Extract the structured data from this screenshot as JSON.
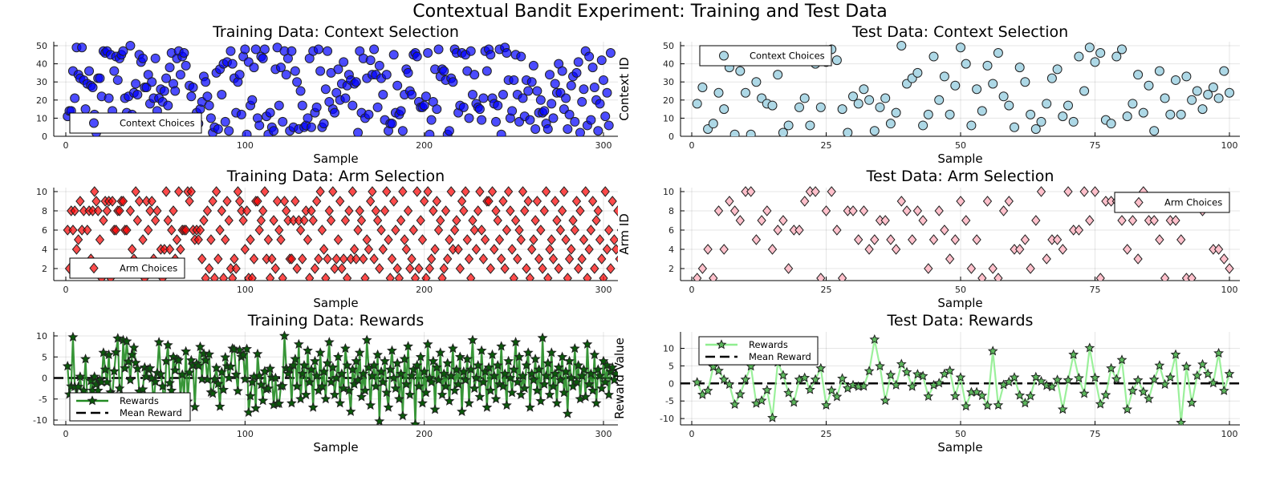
{
  "title": "Contextual Bandit Experiment: Training and Test Data",
  "chart_data": [
    {
      "id": "train_context",
      "type": "scatter",
      "title": "Training Data: Context Selection",
      "xlabel": "Sample",
      "ylabel": "Context ID",
      "legend": [
        "Context Choices"
      ],
      "legend_position": "bottom-left",
      "xlim": [
        0,
        300
      ],
      "ylim": [
        0,
        50
      ],
      "xticks": [
        0,
        100,
        200,
        300
      ],
      "yticks": [
        0,
        10,
        20,
        30,
        40,
        50
      ],
      "grid": true,
      "color": "#0000ff",
      "marker": "circle",
      "values": [
        11,
        14,
        14,
        36,
        21,
        49,
        34,
        32,
        49,
        31,
        15,
        29,
        36,
        28,
        27,
        12,
        2,
        32,
        32,
        22,
        47,
        46,
        47,
        21,
        45,
        14,
        36,
        44,
        31,
        43,
        45,
        47,
        21,
        13,
        22,
        50,
        12,
        24,
        29,
        23,
        45,
        41,
        43,
        27,
        27,
        34,
        18,
        30,
        21,
        43,
        14,
        21,
        26,
        19,
        25,
        32,
        17,
        38,
        46,
        29,
        25,
        43,
        47,
        34,
        44,
        46,
        39,
        6,
        28,
        22,
        27,
        9,
        13,
        7,
        15,
        19,
        33,
        30,
        22,
        17,
        10,
        2,
        5,
        35,
        4,
        37,
        23,
        40,
        8,
        41,
        3,
        47,
        40,
        32,
        13,
        30,
        34,
        12,
        44,
        48,
        1,
        41,
        17,
        20,
        38,
        48,
        10,
        6,
        44,
        43,
        48,
        11,
        1,
        13,
        5,
        3,
        37,
        49,
        17,
        38,
        8,
        47,
        34,
        43,
        3,
        47,
        5,
        36,
        30,
        4,
        25,
        17,
        5,
        6,
        10,
        43,
        5,
        47,
        13,
        16,
        48,
        36,
        5,
        7,
        26,
        47,
        19,
        35,
        15,
        13,
        24,
        37,
        20,
        29,
        41,
        21,
        28,
        34,
        31,
        17,
        29,
        30,
        2,
        47,
        13,
        43,
        10,
        32,
        12,
        42,
        34,
        48,
        34,
        16,
        39,
        32,
        23,
        9,
        34,
        3,
        7,
        7,
        45,
        13,
        28,
        12,
        14,
        3,
        23,
        37,
        35,
        25,
        23,
        45,
        46,
        44,
        19,
        16,
        16,
        17,
        22,
        46,
        1,
        9,
        19,
        37,
        15,
        48,
        33,
        37,
        36,
        31,
        1,
        3,
        32,
        30,
        48,
        46,
        13,
        17,
        46,
        16,
        45,
        36,
        10,
        47,
        23,
        34,
        18,
        16,
        15,
        9,
        21,
        47,
        36,
        48,
        45,
        21,
        18,
        8,
        17,
        48,
        1,
        23,
        49,
        46,
        31,
        10,
        14,
        31,
        45,
        23,
        8,
        44,
        21,
        11,
        31,
        25,
        9,
        30,
        39,
        4,
        25,
        13,
        20,
        13,
        14,
        7,
        4,
        34,
        18,
        10,
        29,
        24,
        40,
        24,
        36,
        15,
        21,
        4,
        12,
        28,
        33,
        8,
        35,
        41,
        2,
        19,
        26,
        47,
        6,
        44,
        9,
        38,
        27,
        20,
        3,
        18,
        42,
        31,
        11,
        24,
        6,
        46
      ],
      "series_name": "Context Choices"
    },
    {
      "id": "test_context",
      "type": "scatter",
      "title": "Test Data: Context Selection",
      "xlabel": "Sample",
      "ylabel": "Context ID",
      "legend": [
        "Context Choices"
      ],
      "legend_position": "top-left",
      "xlim": [
        0,
        100
      ],
      "ylim": [
        0,
        50
      ],
      "xticks": [
        0,
        25,
        50,
        75,
        100
      ],
      "yticks": [
        0,
        10,
        20,
        30,
        40,
        50
      ],
      "grid": true,
      "color": "#add8e6",
      "marker": "circle",
      "values": [
        18,
        27,
        4,
        7,
        24,
        15,
        38,
        1,
        36,
        24,
        1,
        30,
        21,
        18,
        17,
        34,
        2,
        6,
        45,
        16,
        21,
        6,
        40,
        16,
        41,
        48,
        42,
        15,
        2,
        22,
        18,
        26,
        20,
        3,
        16,
        21,
        7,
        13,
        50,
        29,
        32,
        35,
        6,
        12,
        44,
        20,
        33,
        12,
        28,
        49,
        40,
        6,
        26,
        14,
        39,
        29,
        46,
        22,
        17,
        5,
        38,
        30,
        12,
        4,
        8,
        18,
        32,
        37,
        11,
        17,
        8,
        44,
        25,
        49,
        41,
        46,
        9,
        7,
        44,
        48,
        11,
        18,
        34,
        13,
        28,
        3,
        36,
        21,
        12,
        31,
        12,
        33,
        20,
        25,
        15,
        23,
        27,
        21,
        36,
        24
      ],
      "series_name": "Context Choices"
    },
    {
      "id": "train_arm",
      "type": "scatter",
      "title": "Training Data: Arm Selection",
      "xlabel": "Sample",
      "ylabel": "Arm ID",
      "legend": [
        "Arm Choices"
      ],
      "legend_position": "bottom-left",
      "xlim": [
        0,
        300
      ],
      "ylim": [
        1,
        10
      ],
      "xticks": [
        0,
        100,
        200,
        300
      ],
      "yticks": [
        2,
        4,
        6,
        8,
        10
      ],
      "grid": true,
      "color": "#ff0000",
      "marker": "diamond",
      "values": [
        6,
        2,
        8,
        6,
        8,
        4,
        5,
        9,
        6,
        8,
        2,
        6,
        8,
        3,
        8,
        10,
        9,
        8,
        5,
        1,
        7,
        9,
        8,
        9,
        1,
        9,
        6,
        6,
        8,
        8,
        9,
        9,
        6,
        6,
        2,
        8,
        4,
        3,
        10,
        7,
        9,
        2,
        5,
        1,
        9,
        6,
        8,
        9,
        3,
        7,
        8,
        2,
        4,
        1,
        4,
        10,
        7,
        4,
        6,
        8,
        3,
        5,
        10,
        4,
        6,
        6,
        6,
        10,
        9,
        10,
        6,
        5,
        6,
        5,
        6,
        3,
        7,
        1,
        8,
        2,
        5,
        9,
        1,
        10,
        3,
        6,
        8,
        1,
        5,
        9,
        7,
        2,
        1,
        3,
        2,
        10,
        9,
        8,
        7,
        4,
        8,
        1,
        5,
        1,
        3,
        9,
        9,
        6,
        7,
        8,
        10,
        3,
        5,
        1,
        3,
        7,
        2,
        9,
        6,
        5,
        1,
        9,
        8,
        7,
        3,
        3,
        7,
        9,
        2,
        7,
        6,
        3,
        7,
        8,
        5,
        1,
        8,
        7,
        2,
        9,
        3,
        10,
        6,
        4,
        1,
        3,
        8,
        7,
        10,
        2,
        3,
        5,
        9,
        2,
        3,
        7,
        1,
        8,
        3,
        10,
        4,
        3,
        6,
        8,
        7,
        3,
        1,
        5,
        4,
        9,
        10,
        3,
        8,
        7,
        2,
        6,
        4,
        8,
        10,
        5,
        1,
        3,
        9,
        6,
        2,
        1,
        7,
        10,
        5,
        4,
        8,
        2,
        3,
        6,
        1,
        10,
        2,
        7,
        5,
        9,
        1,
        10,
        2,
        3,
        8,
        4,
        9,
        6,
        7,
        1,
        2,
        8,
        3,
        5,
        10,
        4,
        6,
        7,
        4,
        2,
        9,
        8,
        10,
        5,
        3,
        1,
        7,
        6,
        4,
        8,
        10,
        6,
        3,
        5,
        9,
        9,
        2,
        10,
        4,
        8,
        7,
        5,
        3,
        9,
        2,
        6,
        10,
        8,
        4,
        1,
        7,
        3,
        6,
        5,
        10,
        8,
        2,
        9,
        1,
        4,
        5,
        7,
        9,
        3,
        6,
        2,
        8,
        10,
        1,
        4,
        5,
        3,
        9,
        7,
        2,
        6,
        8,
        10,
        5,
        1,
        3,
        4,
        7,
        6,
        9,
        2,
        8,
        3,
        5,
        10,
        1,
        4,
        6,
        9,
        2,
        7,
        8,
        5,
        3,
        1,
        10,
        4,
        6,
        2,
        9,
        5,
        4,
        8,
        3,
        6
      ],
      "series_name": "Arm Choices"
    },
    {
      "id": "test_arm",
      "type": "scatter",
      "title": "Test Data: Arm Selection",
      "xlabel": "Sample",
      "ylabel": "Arm ID",
      "legend": [
        "Arm Choices"
      ],
      "legend_position": "top-right",
      "xlim": [
        0,
        100
      ],
      "ylim": [
        1,
        10
      ],
      "xticks": [
        0,
        25,
        50,
        75,
        100
      ],
      "yticks": [
        2,
        4,
        6,
        8,
        10
      ],
      "grid": true,
      "color": "#ffc0cb",
      "marker": "diamond",
      "values": [
        1,
        2,
        4,
        1,
        8,
        4,
        9,
        8,
        7,
        10,
        10,
        5,
        7,
        8,
        4,
        6,
        7,
        2,
        6,
        6,
        9,
        10,
        10,
        1,
        8,
        10,
        6,
        1,
        8,
        8,
        5,
        8,
        4,
        5,
        7,
        7,
        5,
        4,
        9,
        8,
        5,
        8,
        7,
        2,
        5,
        8,
        6,
        3,
        5,
        9,
        7,
        2,
        5,
        1,
        9,
        2,
        1,
        8,
        9,
        4,
        4,
        5,
        2,
        7,
        10,
        3,
        5,
        5,
        4,
        10,
        6,
        6,
        10,
        7,
        10,
        1,
        9,
        9,
        9,
        7,
        4,
        7,
        3,
        10,
        7,
        7,
        5,
        1,
        7,
        7,
        5,
        1,
        1,
        9,
        8,
        9,
        4,
        4,
        3,
        2
      ],
      "series_name": "Arm Choices"
    },
    {
      "id": "train_reward",
      "type": "line",
      "title": "Training Data: Rewards",
      "xlabel": "Sample",
      "ylabel": "Reward Value",
      "legend": [
        "Rewards",
        "Mean Reward"
      ],
      "legend_position": "bottom-left",
      "xlim": [
        0,
        300
      ],
      "ylim": [
        -11,
        10.5
      ],
      "xticks": [
        0,
        100,
        200,
        300
      ],
      "yticks": [
        -10,
        -5,
        0,
        5,
        10
      ],
      "grid": true,
      "color": "#228b22",
      "marker": "star",
      "mean_reward": 0,
      "values": [
        2.8,
        -3.9,
        -2,
        9.7,
        -2.1,
        -4,
        -2.1,
        0.3,
        -4,
        -3,
        4.5,
        -5,
        -7,
        -0.7,
        -3,
        0.3,
        -1.5,
        -3,
        -0.5,
        -1,
        6,
        2,
        -1,
        5.5,
        -3.4,
        -4,
        1.6,
        6.1,
        9.4,
        -2.5,
        -4,
        9,
        2.3,
        8.7,
        3.9,
        -0.5,
        5.5,
        7.2,
        3.6,
        2.2,
        -3.2,
        -5,
        -2.7,
        2.5,
        0.3,
        2,
        2.3,
        -0.1,
        -6,
        -0.9,
        1.2,
        8.5,
        0.9,
        -2,
        -7,
        4,
        7.8,
        -1.2,
        -3,
        5,
        1.8,
        4.5,
        4.2,
        -4.4,
        0.8,
        -4.5,
        6.3,
        -5.6,
        1.3,
        4.2,
        3,
        -6.9,
        3.4,
        2.9,
        7.4,
        -0.3,
        5.8,
        4.2,
        -0.4,
        5.6,
        -3.4,
        -3.7,
        -0.3,
        2.4,
        -1.4,
        -6.8,
        1.4,
        -2.8,
        4.9,
        2.8,
        0,
        2.7,
        7,
        6.8,
        0.8,
        -3.1,
        6.6,
        5,
        5.5,
        -0.3,
        6.9,
        -8.2,
        -4.3,
        -1,
        0.3,
        -7.2,
        5.7,
        0.5,
        -1.6,
        -5.4,
        1.6,
        -2.7,
        -2.5,
        2.2,
        0.1,
        -6.4,
        0,
        -6.1,
        -6.1,
        -2,
        -1.9,
        10,
        2.3,
        1,
        2.1,
        -6,
        3,
        4.5,
        -2,
        8,
        -5,
        1,
        3,
        -4,
        6.5,
        -1,
        2,
        -7,
        4,
        0.5,
        -3,
        6,
        -2,
        1.5,
        -5,
        3.5,
        8.5,
        -1,
        2.5,
        -4,
        0,
        5,
        -6,
        1,
        -2.5,
        7,
        3,
        -3,
        -8,
        2,
        -1.5,
        4,
        -0.5,
        6,
        -4.5,
        1,
        -3,
        9,
        2.5,
        -6.5,
        0.5,
        3,
        -2,
        5.5,
        -10.3,
        1.5,
        -1,
        4,
        -3.5,
        -7,
        2,
        6.5,
        0,
        -2.5,
        3.5,
        -5,
        1,
        -9,
        4.5,
        -1.5,
        7.5,
        -4,
        0.5,
        2,
        -11,
        3,
        -2,
        5,
        -6,
        1.5,
        -3.5,
        8,
        0,
        -1,
        4,
        -7.5,
        2.5,
        -0.5,
        6,
        -4,
        1,
        -2,
        3.5,
        -5.5,
        0.5,
        7,
        -3,
        2,
        -1.5,
        5,
        -8,
        1.5,
        -0.5,
        4.5,
        -6,
        2,
        9,
        -2.5,
        0,
        3,
        -4.5,
        6.5,
        -1,
        1.5,
        -7,
        2.5,
        -3,
        5.5,
        0.5,
        -5,
        3,
        -1.5,
        7.5,
        -2,
        1,
        -6.5,
        4,
        0,
        -3.5,
        2,
        8.5,
        -1,
        5,
        -4,
        0.5,
        -2.5,
        3,
        6,
        -7,
        1,
        -0.5,
        4.5,
        -3,
        2,
        -5.5,
        9.5,
        -1.5,
        0.5,
        3.5,
        -4,
        6,
        -2,
        1,
        -6,
        2.5,
        -0.5,
        5,
        -3.5,
        1.5,
        -8.5,
        4,
        0,
        -2,
        7,
        -1,
        3,
        -5,
        0.5,
        2,
        -4.5,
        8,
        -1.5,
        1,
        -3,
        5.5,
        -6,
        2,
        0.5,
        -2.5,
        4,
        -1,
        3,
        -4,
        1.5,
        2.5,
        -0.5,
        1
      ],
      "series_name": "Rewards"
    },
    {
      "id": "test_reward",
      "type": "line",
      "title": "Test Data: Rewards",
      "xlabel": "Sample",
      "ylabel": "Reward Value",
      "legend": [
        "Rewards",
        "Mean Reward"
      ],
      "legend_position": "top-left",
      "xlim": [
        0,
        100
      ],
      "ylim": [
        -11.8,
        14.7
      ],
      "xticks": [
        0,
        25,
        50,
        75,
        100
      ],
      "yticks": [
        -10,
        -5,
        0,
        5,
        10
      ],
      "grid": true,
      "color": "#90ee90",
      "marker": "star",
      "mean_reward": 0,
      "values": [
        0.3,
        -3.2,
        -2.1,
        4.7,
        3.6,
        1.1,
        -0.3,
        -6,
        -3.1,
        1.1,
        4.9,
        -5.7,
        -4.9,
        -1.9,
        -9.8,
        6,
        2.3,
        -2.7,
        -5.4,
        1.1,
        1.6,
        -1.8,
        1.1,
        4.3,
        -6.2,
        -2,
        -3.8,
        1.4,
        -1.4,
        -0.5,
        -0.9,
        -0.8,
        3.5,
        12.5,
        4.9,
        -4.9,
        2.4,
        -0.5,
        5.5,
        3.2,
        -0.9,
        2.6,
        2.1,
        -3.7,
        -0.5,
        0.1,
        2.7,
        3.6,
        -3.6,
        1.7,
        -6.5,
        -2.5,
        -2.5,
        -3.5,
        -6.3,
        9.2,
        -6.2,
        -0.4,
        0.4,
        1.7,
        -3.4,
        -5.6,
        -3.6,
        1.8,
        0.6,
        -0.6,
        -1,
        1,
        -7.4,
        0.9,
        8.2,
        1.5,
        -2.9,
        10.1,
        1.6,
        -5.9,
        -3.3,
        4.3,
        1.2,
        6.7,
        -7.4,
        -2.1,
        0.9,
        -2.4,
        -4.4,
        1.1,
        5.1,
        -0.3,
        1.7,
        8.2,
        -11.2,
        4.8,
        -5.5,
        2.2,
        5.4,
        2.7,
        0.1,
        8.6,
        -2.1,
        2.7
      ],
      "series_name": "Rewards"
    }
  ]
}
